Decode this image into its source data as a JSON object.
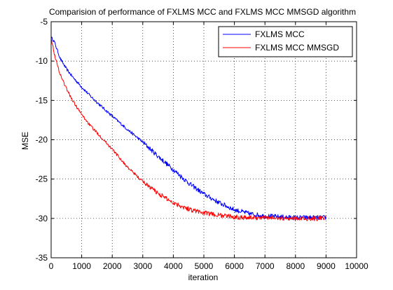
{
  "chart_data": {
    "type": "line",
    "title": "Comparision of performance of FXLMS MCC and FXLMS MCC MMSGD algorithm",
    "xlabel": "iteration",
    "ylabel": "MSE",
    "xlim": [
      0,
      10000
    ],
    "ylim": [
      -35,
      -5
    ],
    "xticks": [
      0,
      1000,
      2000,
      3000,
      4000,
      5000,
      6000,
      7000,
      8000,
      9000,
      10000
    ],
    "yticks": [
      -35,
      -30,
      -25,
      -20,
      -15,
      -10,
      -5
    ],
    "xtick_labels": [
      "0",
      "1000",
      "2000",
      "3000",
      "4000",
      "5000",
      "6000",
      "7000",
      "8000",
      "9000",
      "10000"
    ],
    "ytick_labels": [
      "-35",
      "-30",
      "-25",
      "-20",
      "-15",
      "-10",
      "-5"
    ],
    "grid": true,
    "grid_style": "dotted",
    "legend_position": "top-right",
    "series": [
      {
        "name": "FXLMS MCC",
        "color": "#0000ff",
        "x": [
          0,
          100,
          200,
          300,
          500,
          700,
          1000,
          1300,
          1600,
          2000,
          2500,
          3000,
          3500,
          4000,
          4500,
          5000,
          5500,
          6000,
          6500,
          7000,
          7500,
          8000,
          8500,
          9000
        ],
        "y": [
          -7.0,
          -7.5,
          -8.6,
          -9.7,
          -11.0,
          -12.0,
          -13.3,
          -14.5,
          -15.6,
          -17.0,
          -18.7,
          -20.3,
          -22.1,
          -23.8,
          -25.5,
          -26.9,
          -28.0,
          -28.9,
          -29.4,
          -29.7,
          -29.8,
          -29.9,
          -29.9,
          -29.9
        ]
      },
      {
        "name": "FXLMS MCC MMSGD",
        "color": "#ff0000",
        "x": [
          0,
          100,
          200,
          300,
          500,
          700,
          1000,
          1300,
          1600,
          2000,
          2500,
          3000,
          3500,
          4000,
          4500,
          5000,
          5500,
          6000,
          6500,
          7000,
          7500,
          8000,
          8500,
          9000
        ],
        "y": [
          -7.0,
          -9.0,
          -10.5,
          -11.7,
          -13.5,
          -15.0,
          -16.8,
          -18.3,
          -19.5,
          -21.2,
          -23.5,
          -25.3,
          -26.8,
          -28.0,
          -28.8,
          -29.3,
          -29.6,
          -29.8,
          -29.9,
          -29.9,
          -30.0,
          -30.0,
          -30.0,
          -30.0
        ]
      }
    ]
  }
}
